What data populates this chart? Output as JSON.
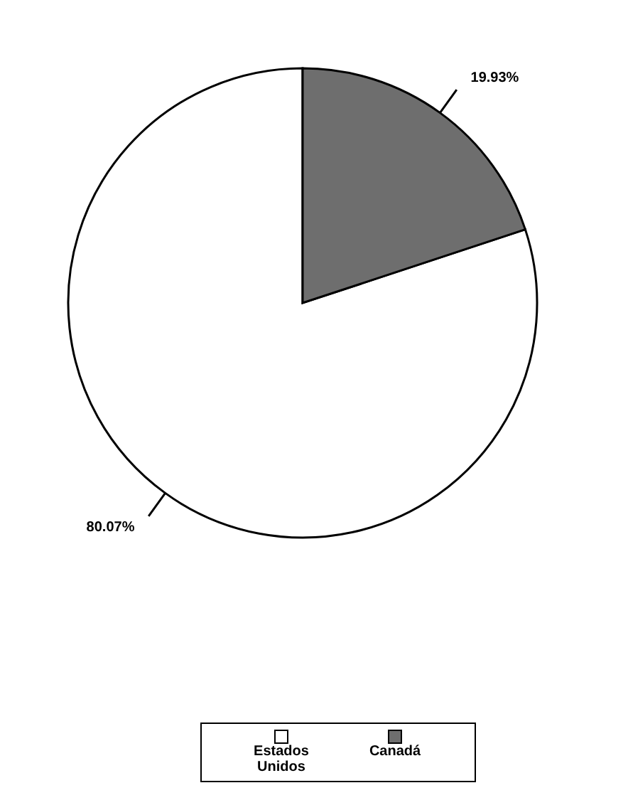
{
  "chart_data": {
    "type": "pie",
    "categories": [
      "Estados Unidos",
      "Canadá"
    ],
    "values": [
      80.07,
      19.93
    ],
    "colors": [
      "#ffffff",
      "#6e6e6e"
    ],
    "value_labels": [
      "80.07%",
      "19.93%"
    ],
    "legend": "bottom"
  }
}
